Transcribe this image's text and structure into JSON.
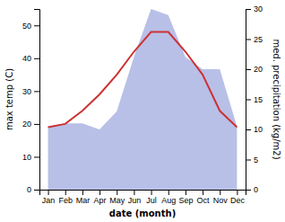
{
  "chart_data": {
    "type": "line",
    "xlabel": "date (month)",
    "ylabel": "max temp (C)",
    "y2label": "med. precipitation (kg/m2)",
    "categories": [
      "Jan",
      "Feb",
      "Mar",
      "Apr",
      "May",
      "Jun",
      "Jul",
      "Aug",
      "Sep",
      "Oct",
      "Nov",
      "Dec"
    ],
    "series": [
      {
        "type": "area",
        "axis": "y2",
        "color": "#b8c0e8",
        "values": [
          10.5,
          11,
          11,
          10,
          13,
          22,
          30,
          29,
          22,
          20,
          20,
          10.5
        ]
      },
      {
        "type": "line",
        "color": "#cc3333",
        "values": [
          19,
          20,
          24,
          29,
          35,
          42,
          48,
          48,
          42,
          35,
          24,
          19
        ]
      }
    ],
    "ylim": [
      0,
      55
    ],
    "yticks": [
      0,
      10,
      20,
      30,
      40,
      50
    ],
    "y2lim": [
      0,
      30
    ],
    "y2ticks": [
      0,
      5,
      10,
      15,
      20,
      25,
      30
    ]
  }
}
